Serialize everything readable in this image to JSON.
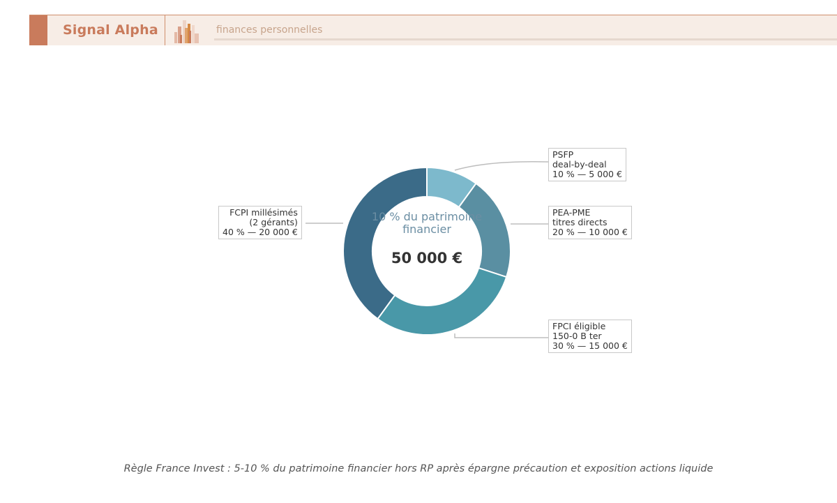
{
  "header": {
    "brand": "Signal Alpha",
    "tagline": "finances personnelles",
    "colors": {
      "accent": "#c97b5c",
      "band": "#f7ede6"
    }
  },
  "chart_data": {
    "type": "pie",
    "donut": true,
    "center_label": "10 % du patrimoine financier",
    "center_value": "50 000 €",
    "slices": [
      {
        "label_lines": [
          "PSFP",
          "deal-by-deal",
          "10 % — 5 000 €"
        ],
        "percent": 10,
        "amount": 5000,
        "color": "#7db9cc"
      },
      {
        "label_lines": [
          "PEA-PME",
          "titres directs",
          "20 % — 10 000 €"
        ],
        "percent": 20,
        "amount": 10000,
        "color": "#5a8fa2"
      },
      {
        "label_lines": [
          "FPCI éligible",
          "150-0 B ter",
          "30 % — 15 000 €"
        ],
        "percent": 30,
        "amount": 15000,
        "color": "#4998a8"
      },
      {
        "label_lines": [
          "FCPI millésimés",
          "(2 gérants)",
          "40 % — 20 000 €"
        ],
        "percent": 40,
        "amount": 20000,
        "color": "#3b6b88"
      }
    ]
  },
  "footnote": "Règle France Invest : 5-10 % du patrimoine financier hors RP après épargne précaution et exposition actions liquide"
}
